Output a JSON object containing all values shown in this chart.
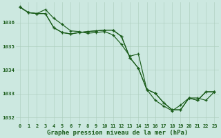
{
  "title": "Graphe pression niveau de la mer (hPa)",
  "bg_color": "#cce8e0",
  "grid_color": "#aaccbb",
  "line_color": "#1a5c1a",
  "xlim": [
    -0.5,
    23.5
  ],
  "ylim": [
    1031.75,
    1036.85
  ],
  "yticks": [
    1032,
    1033,
    1034,
    1035,
    1036
  ],
  "xticks": [
    0,
    1,
    2,
    3,
    4,
    5,
    6,
    7,
    8,
    9,
    10,
    11,
    12,
    13,
    14,
    15,
    16,
    17,
    18,
    19,
    20,
    21,
    22,
    23
  ],
  "series1": {
    "x": [
      0,
      1,
      2,
      3,
      4,
      5,
      6,
      7,
      8,
      9,
      10,
      11,
      12,
      13,
      14,
      15,
      16,
      17,
      18,
      19,
      20,
      21,
      22,
      23
    ],
    "y": [
      1036.65,
      1036.42,
      1036.38,
      1036.55,
      1036.18,
      1035.92,
      1035.65,
      1035.62,
      1035.55,
      1035.58,
      1035.62,
      1035.48,
      1035.08,
      1034.58,
      1034.68,
      1033.18,
      1033.02,
      1032.62,
      1032.32,
      1032.32,
      1032.82,
      1032.72,
      1033.08,
      1033.08
    ]
  },
  "series2": {
    "x": [
      0,
      1,
      2,
      3,
      4,
      5,
      6,
      7,
      8,
      9,
      10,
      11,
      12,
      13,
      14,
      15,
      16,
      17,
      18,
      19,
      20,
      21,
      22,
      23
    ],
    "y": [
      1036.65,
      1036.42,
      1036.38,
      1036.38,
      1035.78,
      1035.58,
      1035.52,
      1035.58,
      1035.62,
      1035.65,
      1035.68,
      1035.68,
      1035.42,
      1034.52,
      1034.08,
      1033.18,
      1033.02,
      1032.62,
      1032.32,
      1032.32,
      1032.82,
      1032.72,
      1033.08,
      1033.08
    ]
  },
  "series3": {
    "x": [
      0,
      1,
      2,
      3,
      4,
      5,
      6,
      7,
      8,
      9,
      10,
      11,
      12,
      13,
      14,
      15,
      16,
      17,
      18,
      19,
      20,
      21,
      22,
      23
    ],
    "y": [
      1036.65,
      1036.42,
      1036.38,
      1036.38,
      1035.78,
      1035.58,
      1035.52,
      1035.58,
      1035.62,
      1035.65,
      1035.68,
      1035.68,
      1035.42,
      1034.52,
      1034.08,
      1033.18,
      1032.72,
      1032.48,
      1032.28,
      1032.52,
      1032.82,
      1032.82,
      1032.72,
      1033.08
    ]
  },
  "title_fontsize": 6.5,
  "tick_fontsize": 5.0,
  "linewidth": 0.85,
  "markersize": 3.0
}
